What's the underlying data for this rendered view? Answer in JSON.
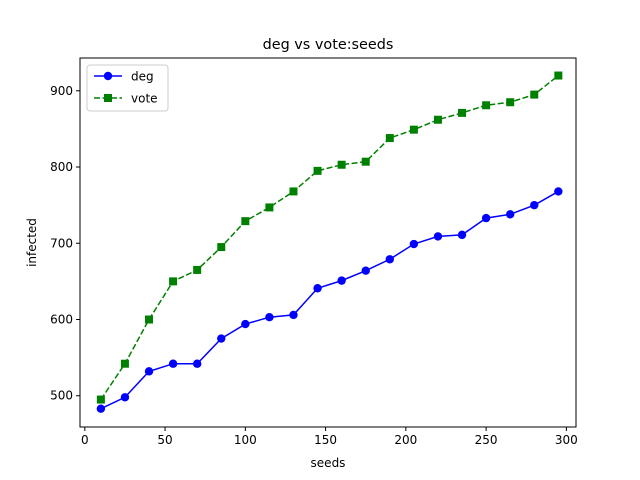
{
  "chart_data": {
    "type": "line",
    "title": "deg vs vote:seeds",
    "xlabel": "seeds",
    "ylabel": "infected",
    "xlim": [
      -3,
      306
    ],
    "ylim": [
      459,
      943
    ],
    "xticks": [
      0,
      50,
      100,
      150,
      200,
      250,
      300
    ],
    "yticks": [
      500,
      600,
      700,
      800,
      900
    ],
    "grid": false,
    "legend_position": "top-left",
    "x": [
      10,
      25,
      40,
      55,
      70,
      85,
      100,
      115,
      130,
      145,
      160,
      175,
      190,
      205,
      220,
      235,
      250,
      265,
      280,
      295
    ],
    "series": [
      {
        "name": "deg",
        "color": "#0000ff",
        "line_style": "solid",
        "marker": "circle",
        "values": [
          483,
          498,
          532,
          542,
          542,
          575,
          594,
          603,
          606,
          641,
          651,
          664,
          679,
          699,
          709,
          711,
          733,
          738,
          750,
          768
        ]
      },
      {
        "name": "vote",
        "color": "#008000",
        "line_style": "dashed",
        "marker": "square",
        "values": [
          495,
          542,
          600,
          650,
          665,
          695,
          729,
          747,
          768,
          795,
          803,
          807,
          838,
          849,
          862,
          871,
          881,
          885,
          895,
          920
        ]
      }
    ]
  }
}
